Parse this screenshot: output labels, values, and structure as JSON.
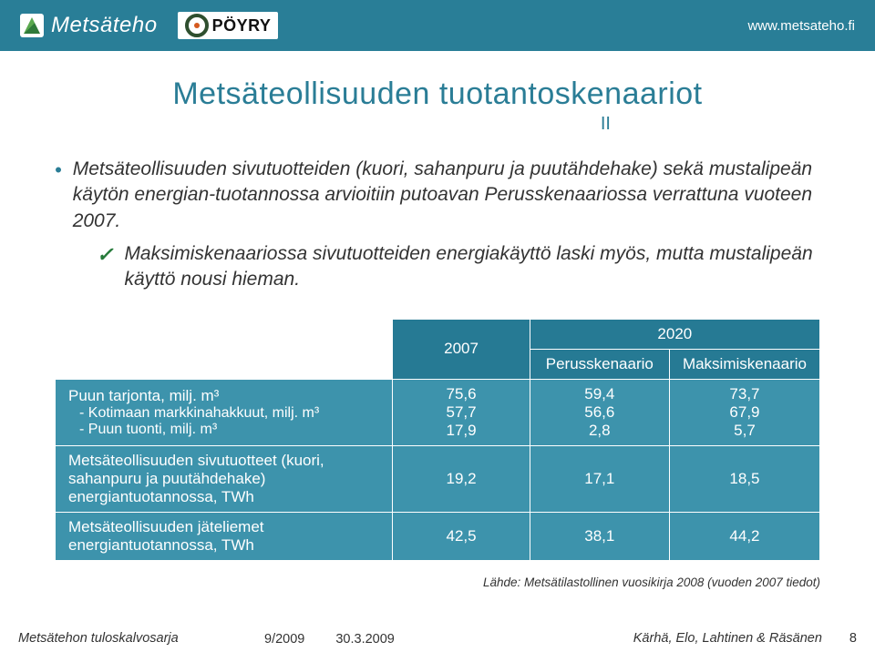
{
  "header": {
    "brand_text": "Metsäteho",
    "poyry_text": "PÖYRY",
    "url": "www.metsateho.fi",
    "bg_color": "#297e97",
    "text_color": "#ffffff"
  },
  "title_line1": "Metsäteollisuuden tuotantoskenaariot",
  "title_line2": "II",
  "bullets": {
    "b1": "Metsäteollisuuden sivutuotteiden (kuori, sahanpuru ja puutähdehake) sekä mustalipeän käytön energian-tuotannossa arvioitiin putoavan Perusskenaariossa verrattuna vuoteen 2007.",
    "b2": "Maksimiskenaariossa sivutuotteiden energiakäyttö laski myös, mutta mustalipeän käyttö nousi hieman."
  },
  "table": {
    "header_bg": "#267a94",
    "body_bg": "#3d93ac",
    "border_color": "#ffffff",
    "text_color": "#ffffff",
    "year_left": "2007",
    "year_group": "2020",
    "scenario_a": "Perusskenaario",
    "scenario_b": "Maksimiskenaario",
    "rows": [
      {
        "label_main": "Puun tarjonta, milj. m³",
        "label_sub1": "- Kotimaan markkinahakkuut, milj. m³",
        "label_sub2": "- Puun tuonti, milj. m³",
        "v2007": "75,6\n57,7\n17,9",
        "v2020a": "59,4\n56,6\n2,8",
        "v2020b": "73,7\n67,9\n5,7"
      },
      {
        "label_main": "Metsäteollisuuden sivutuotteet (kuori, sahanpuru ja puutähdehake) energiantuotannossa, TWh",
        "v2007": "19,2",
        "v2020a": "17,1",
        "v2020b": "18,5"
      },
      {
        "label_main": "Metsäteollisuuden jäteliemet energiantuotannossa, TWh",
        "v2007": "42,5",
        "v2020a": "38,1",
        "v2020b": "44,2"
      }
    ]
  },
  "source_note": "Lähde: Metsätilastollinen vuosikirja 2008 (vuoden 2007 tiedot)",
  "footer": {
    "series": "Metsätehon tuloskalvosarja",
    "issue": "9/2009",
    "date": "30.3.2009",
    "authors": "Kärhä, Elo, Lahtinen & Räsänen",
    "page": "8"
  },
  "colors": {
    "title": "#2a7d96",
    "check": "#267a3a",
    "text": "#333333"
  }
}
